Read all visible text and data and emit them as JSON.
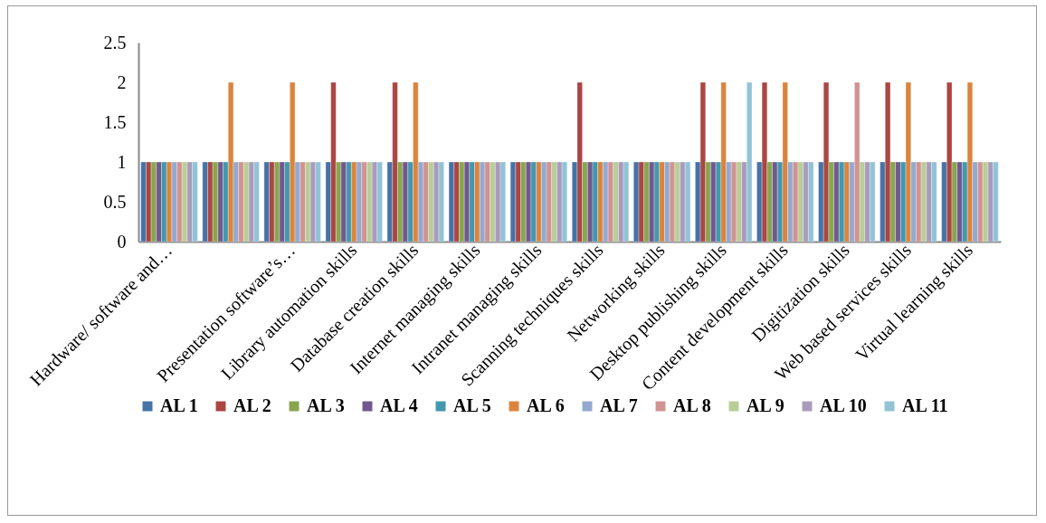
{
  "chart_data": {
    "type": "bar",
    "categories": [
      "Hardware/ software and…",
      null,
      "Presentation software’s…",
      "Library automation skills",
      "Database creation skills",
      "Internet managing skills",
      "Intranet managing skills",
      "Scanning techniques skills",
      "Networking skills",
      "Desktop publishing skills",
      "Content development skills",
      "Digitization skills",
      "Web based services skills",
      "Virtual learning skills"
    ],
    "series": [
      {
        "name": "AL 1",
        "color": "#4572a7",
        "values": [
          1,
          1,
          1,
          1,
          1,
          1,
          1,
          1,
          1,
          1,
          1,
          1,
          1,
          1
        ]
      },
      {
        "name": "AL 2",
        "color": "#aa4643",
        "values": [
          1,
          1,
          1,
          2,
          2,
          1,
          1,
          2,
          1,
          2,
          2,
          2,
          2,
          2
        ]
      },
      {
        "name": "AL 3",
        "color": "#89a54e",
        "values": [
          1,
          1,
          1,
          1,
          1,
          1,
          1,
          1,
          1,
          1,
          1,
          1,
          1,
          1
        ]
      },
      {
        "name": "AL 4",
        "color": "#71588f",
        "values": [
          1,
          1,
          1,
          1,
          1,
          1,
          1,
          1,
          1,
          1,
          1,
          1,
          1,
          1
        ]
      },
      {
        "name": "AL 5",
        "color": "#4198af",
        "values": [
          1,
          1,
          1,
          1,
          1,
          1,
          1,
          1,
          1,
          1,
          1,
          1,
          1,
          1
        ]
      },
      {
        "name": "AL 6",
        "color": "#db843d",
        "values": [
          1,
          2,
          2,
          1,
          2,
          1,
          1,
          1,
          1,
          2,
          2,
          1,
          2,
          2
        ]
      },
      {
        "name": "AL 7",
        "color": "#93a9cf",
        "values": [
          1,
          1,
          1,
          1,
          1,
          1,
          1,
          1,
          1,
          1,
          1,
          1,
          1,
          1
        ]
      },
      {
        "name": "AL 8",
        "color": "#d19392",
        "values": [
          1,
          1,
          1,
          1,
          1,
          1,
          1,
          1,
          1,
          1,
          1,
          2,
          1,
          1
        ]
      },
      {
        "name": "AL 9",
        "color": "#b9cd96",
        "values": [
          1,
          1,
          1,
          1,
          1,
          1,
          1,
          1,
          1,
          1,
          1,
          1,
          1,
          1
        ]
      },
      {
        "name": "AL 10",
        "color": "#a99bbd",
        "values": [
          1,
          1,
          1,
          1,
          1,
          1,
          1,
          1,
          1,
          1,
          1,
          1,
          1,
          1
        ]
      },
      {
        "name": "AL 11",
        "color": "#91c3d5",
        "values": [
          1,
          1,
          1,
          1,
          1,
          1,
          1,
          1,
          1,
          2,
          1,
          1,
          1,
          1
        ]
      }
    ],
    "ylim": [
      0,
      2.5
    ],
    "yticks": [
      0,
      0.5,
      1,
      1.5,
      2,
      2.5
    ],
    "grid": false,
    "legend": "bottom"
  }
}
